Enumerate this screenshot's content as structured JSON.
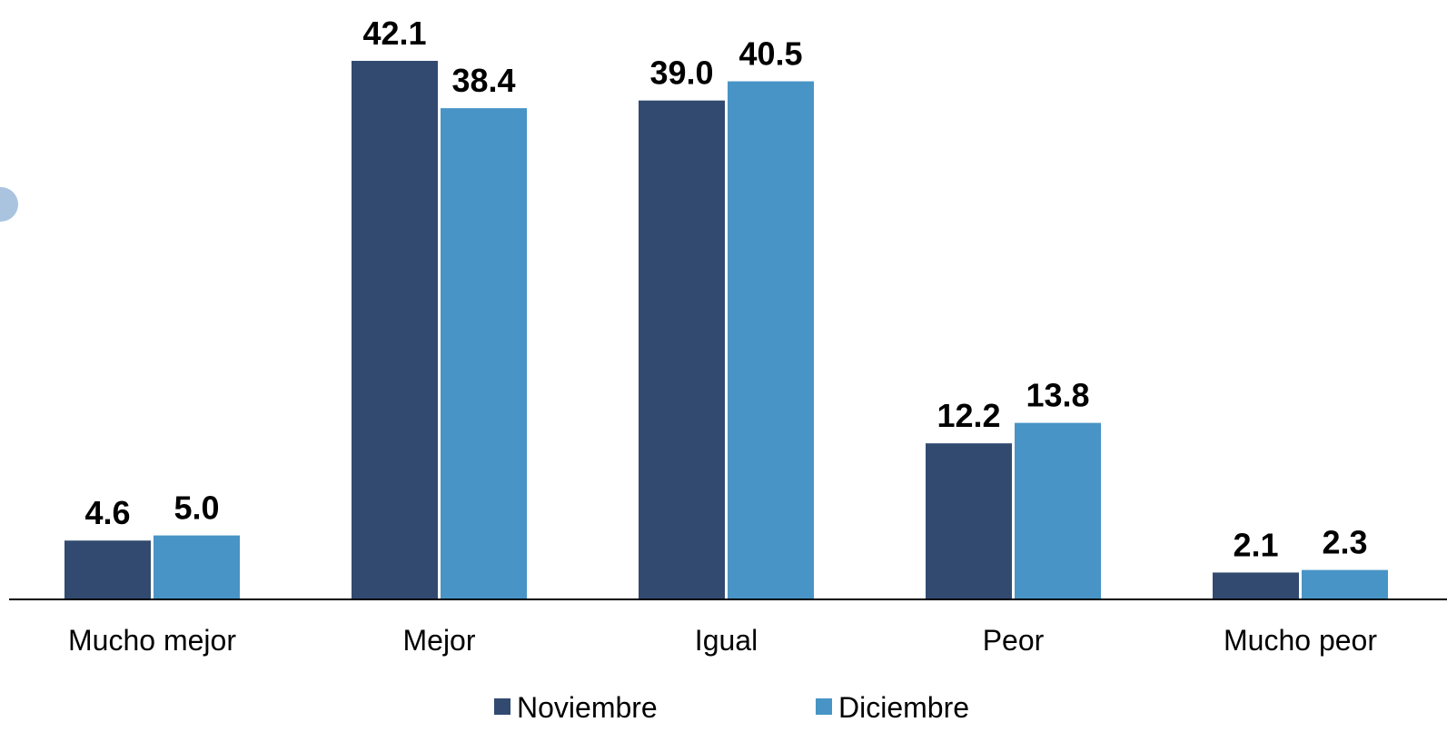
{
  "chart_data": {
    "type": "bar",
    "categories": [
      "Mucho mejor",
      "Mejor",
      "Igual",
      "Peor",
      "Mucho peor"
    ],
    "series": [
      {
        "name": "Noviembre",
        "values": [
          4.6,
          42.1,
          39.0,
          12.2,
          2.1
        ],
        "labels": [
          "4.6",
          "42.1",
          "39.0",
          "12.2",
          "2.1"
        ],
        "color": "#324a70"
      },
      {
        "name": "Diciembre",
        "values": [
          5.0,
          38.4,
          40.5,
          13.8,
          2.3
        ],
        "labels": [
          "5.0",
          "38.4",
          "40.5",
          "13.8",
          "2.3"
        ],
        "color": "#4894c6"
      }
    ],
    "title": "",
    "xlabel": "",
    "ylabel": "",
    "ylim": [
      0,
      42.1
    ],
    "grid": false,
    "legend": "bottom-center"
  },
  "colors": {
    "axis": "#000000",
    "side_marker": "#aac4e0"
  }
}
